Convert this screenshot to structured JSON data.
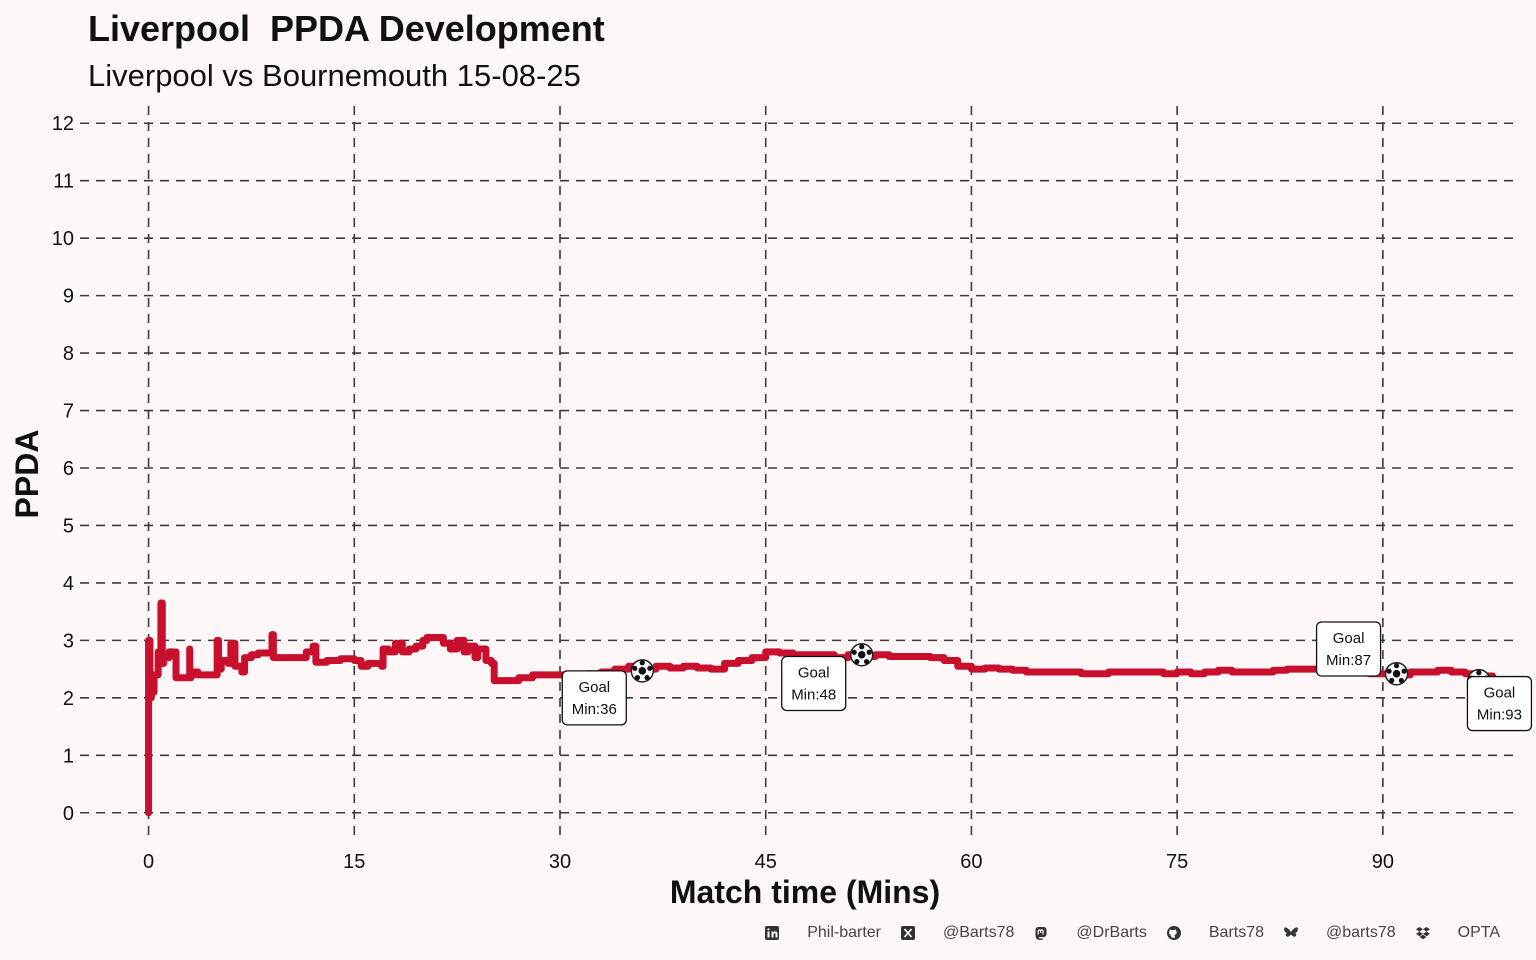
{
  "chart_data": {
    "type": "line",
    "title": "Liverpool  PPDA Development",
    "subtitle": "Liverpool vs Bournemouth 15-08-25",
    "xlabel": "Match time (Mins)",
    "ylabel": "PPDA",
    "xlim": [
      -5,
      100
    ],
    "ylim": [
      -0.3,
      12.3
    ],
    "x_ticks": [
      0,
      15,
      30,
      45,
      60,
      75,
      90
    ],
    "y_ticks": [
      0,
      1,
      2,
      3,
      4,
      5,
      6,
      7,
      8,
      9,
      10,
      11,
      12
    ],
    "grid": "dashed",
    "line_color": "#c8102e",
    "series": [
      {
        "name": "Liverpool PPDA",
        "x": [
          0,
          0,
          0.1,
          0.2,
          0.4,
          0.7,
          0.9,
          1.0,
          1.0,
          1.1,
          1.5,
          1.8,
          2.0,
          2.0,
          2.6,
          3.0,
          3.0,
          3.1,
          3.3,
          3.6,
          4.0,
          4.8,
          5.0,
          5.1,
          5.3,
          5.8,
          6.0,
          6.3,
          6.8,
          7.0,
          7.2,
          7.5,
          8.0,
          9.0,
          9.0,
          9.1,
          10.0,
          11.0,
          11.5,
          12.0,
          12.2,
          13.0,
          14.0,
          15.0,
          15.5,
          16.0,
          17.0,
          17.1,
          17.5,
          18.0,
          18.5,
          19.0,
          19.5,
          20.0,
          20.3,
          21.0,
          21.5,
          22.0,
          22.5,
          23.0,
          23.3,
          23.8,
          24.0,
          24.6,
          25.0,
          25.2,
          26.0,
          27.0,
          28.0,
          29.0,
          30.0,
          31.0,
          32.0,
          33.0,
          34.0,
          35.0,
          36.0,
          37.0,
          38.0,
          39.0,
          40.0,
          41.0,
          42.0,
          43.0,
          44.0,
          45.0,
          46.0,
          47.0,
          48.0,
          49.0,
          50.0,
          51.0,
          52.0,
          53.0,
          54.0,
          55.0,
          56.0,
          57.0,
          58.0,
          59.0,
          60.0,
          61.0,
          62.0,
          63.0,
          64.0,
          65.0,
          66.0,
          67.0,
          68.0,
          69.0,
          70.0,
          71.0,
          72.0,
          73.0,
          74.0,
          75.0,
          76.0,
          77.0,
          78.0,
          79.0,
          80.0,
          81.0,
          82.0,
          83.0,
          84.0,
          85.0,
          86.0,
          87.0,
          88.0,
          89.0,
          90.0,
          91.0,
          92.0,
          93.0,
          94.0,
          95.0,
          96.0,
          97.0,
          98.0
        ],
        "y": [
          0,
          3.0,
          2.0,
          2.1,
          2.4,
          2.8,
          3.65,
          2.7,
          2.6,
          2.7,
          2.8,
          2.75,
          2.8,
          2.35,
          2.35,
          2.85,
          2.35,
          2.4,
          2.45,
          2.4,
          2.4,
          2.4,
          3.0,
          2.5,
          2.65,
          2.6,
          2.95,
          2.55,
          2.45,
          2.7,
          2.7,
          2.75,
          2.78,
          2.78,
          3.1,
          2.7,
          2.7,
          2.7,
          2.8,
          2.9,
          2.62,
          2.65,
          2.68,
          2.65,
          2.55,
          2.6,
          2.55,
          2.85,
          2.8,
          2.95,
          2.8,
          2.85,
          2.9,
          3.0,
          3.05,
          3.05,
          2.95,
          2.85,
          3.0,
          2.8,
          2.9,
          2.7,
          2.85,
          2.65,
          2.6,
          2.3,
          2.3,
          2.35,
          2.4,
          2.4,
          2.4,
          2.4,
          2.42,
          2.45,
          2.5,
          2.55,
          2.5,
          2.55,
          2.52,
          2.55,
          2.52,
          2.5,
          2.6,
          2.65,
          2.7,
          2.8,
          2.78,
          2.75,
          2.75,
          2.75,
          2.7,
          2.75,
          2.72,
          2.75,
          2.72,
          2.72,
          2.72,
          2.7,
          2.65,
          2.55,
          2.5,
          2.52,
          2.5,
          2.48,
          2.45,
          2.45,
          2.45,
          2.45,
          2.42,
          2.42,
          2.45,
          2.45,
          2.45,
          2.45,
          2.42,
          2.45,
          2.42,
          2.45,
          2.48,
          2.45,
          2.45,
          2.45,
          2.48,
          2.5,
          2.5,
          2.5,
          2.48,
          2.45,
          2.45,
          2.42,
          2.42,
          2.4,
          2.45,
          2.45,
          2.48,
          2.45,
          2.42,
          2.38,
          2.32
        ]
      }
    ],
    "goals": [
      {
        "minute": 36,
        "label_1": "Goal",
        "label_2": "Min:36",
        "marker_x": 36,
        "marker_y": 2.47,
        "box_x": 32.5,
        "box_y": 2.0
      },
      {
        "minute": 48,
        "label_1": "Goal",
        "label_2": "Min:48",
        "marker_x": 52,
        "marker_y": 2.75,
        "box_x": 48.5,
        "box_y": 2.25
      },
      {
        "minute": 87,
        "label_1": "Goal",
        "label_2": "Min:87",
        "marker_x": 91,
        "marker_y": 2.42,
        "box_x": 87.5,
        "box_y": 2.85
      },
      {
        "minute": 93,
        "label_1": "Goal",
        "label_2": "Min:93",
        "marker_x": 97,
        "marker_y": 2.3,
        "box_x": 98.5,
        "box_y": 1.9
      }
    ]
  },
  "footer": {
    "items": [
      {
        "icon": "linkedin-icon",
        "text": "Phil-barter"
      },
      {
        "icon": "x-twitter-icon",
        "text": "@Barts78"
      },
      {
        "icon": "mastodon-icon",
        "text": "@DrBarts"
      },
      {
        "icon": "github-icon",
        "text": "Barts78"
      },
      {
        "icon": "bluesky-icon",
        "text": "@barts78"
      },
      {
        "icon": "dropbox-icon",
        "text": "OPTA"
      }
    ]
  }
}
